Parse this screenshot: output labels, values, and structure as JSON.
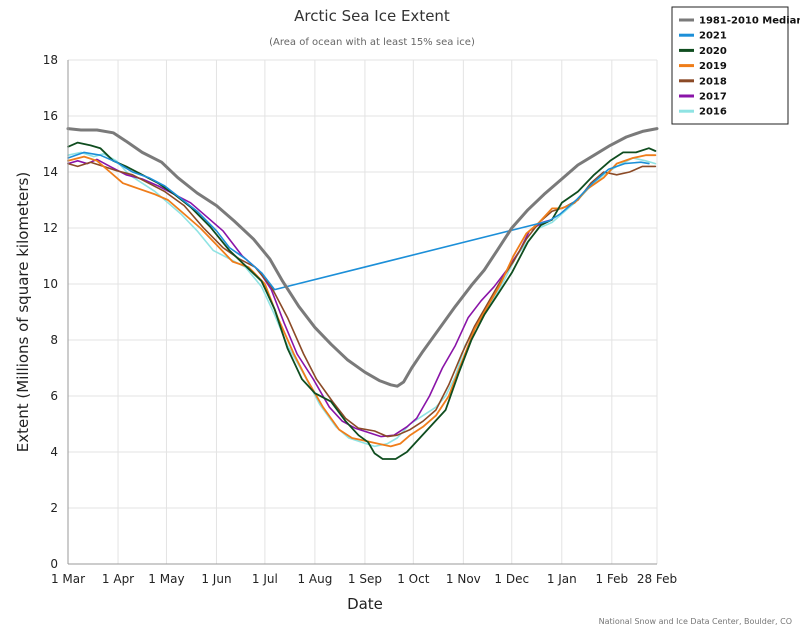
{
  "chart_data": {
    "type": "line",
    "title": "Arctic Sea Ice Extent",
    "subtitle": "(Area of ocean with at least 15% sea ice)",
    "xlabel": "Date",
    "ylabel": "Extent (Millions of square kilometers)",
    "ylim": [
      0,
      18
    ],
    "yticks": [
      0,
      2,
      4,
      6,
      8,
      10,
      12,
      14,
      16,
      18
    ],
    "xlim": [
      0,
      365
    ],
    "xticks": [
      {
        "label": "1 Mar",
        "day": 0
      },
      {
        "label": "1 Apr",
        "day": 31
      },
      {
        "label": "1 May",
        "day": 61
      },
      {
        "label": "1 Jun",
        "day": 92
      },
      {
        "label": "1 Jul",
        "day": 122
      },
      {
        "label": "1 Aug",
        "day": 153
      },
      {
        "label": "1 Sep",
        "day": 184
      },
      {
        "label": "1 Oct",
        "day": 214
      },
      {
        "label": "1 Nov",
        "day": 245
      },
      {
        "label": "1 Dec",
        "day": 275
      },
      {
        "label": "1 Jan",
        "day": 306
      },
      {
        "label": "1 Feb",
        "day": 337
      },
      {
        "label": "28 Feb",
        "day": 365
      }
    ],
    "grid": true,
    "legend_position": "top-right",
    "credits": "National Snow and Ice Data Center, Boulder, CO",
    "series": [
      {
        "name": "1981-2010 Median",
        "color": "#7a7a7a",
        "width": 3,
        "points": [
          [
            0,
            15.55
          ],
          [
            8,
            15.5
          ],
          [
            18,
            15.5
          ],
          [
            28,
            15.4
          ],
          [
            36,
            15.1
          ],
          [
            46,
            14.7
          ],
          [
            58,
            14.35
          ],
          [
            68,
            13.8
          ],
          [
            80,
            13.25
          ],
          [
            92,
            12.8
          ],
          [
            103,
            12.25
          ],
          [
            115,
            11.6
          ],
          [
            125,
            10.9
          ],
          [
            133,
            10.1
          ],
          [
            143,
            9.2
          ],
          [
            153,
            8.45
          ],
          [
            163,
            7.85
          ],
          [
            173,
            7.3
          ],
          [
            184,
            6.85
          ],
          [
            193,
            6.55
          ],
          [
            200,
            6.4
          ],
          [
            204,
            6.35
          ],
          [
            208,
            6.5
          ],
          [
            213,
            7.0
          ],
          [
            220,
            7.6
          ],
          [
            230,
            8.4
          ],
          [
            240,
            9.2
          ],
          [
            250,
            9.95
          ],
          [
            258,
            10.5
          ],
          [
            266,
            11.2
          ],
          [
            275,
            12.0
          ],
          [
            285,
            12.65
          ],
          [
            295,
            13.2
          ],
          [
            306,
            13.75
          ],
          [
            316,
            14.25
          ],
          [
            326,
            14.6
          ],
          [
            336,
            14.95
          ],
          [
            346,
            15.25
          ],
          [
            356,
            15.45
          ],
          [
            365,
            15.55
          ]
        ]
      },
      {
        "name": "2021",
        "color": "#1c8fd8",
        "width": 1.6,
        "points": [
          [
            0,
            14.5
          ],
          [
            10,
            14.7
          ],
          [
            20,
            14.6
          ],
          [
            30,
            14.35
          ],
          [
            40,
            14.0
          ],
          [
            50,
            13.8
          ],
          [
            60,
            13.5
          ],
          [
            70,
            13.05
          ],
          [
            80,
            12.6
          ],
          [
            92,
            11.9
          ],
          [
            100,
            11.3
          ],
          [
            110,
            10.9
          ],
          [
            120,
            10.4
          ],
          [
            128,
            9.8
          ],
          [
            298,
            12.25
          ],
          [
            305,
            12.5
          ],
          [
            315,
            13.0
          ],
          [
            325,
            13.6
          ],
          [
            335,
            14.1
          ],
          [
            345,
            14.3
          ],
          [
            355,
            14.35
          ],
          [
            360,
            14.3
          ]
        ]
      },
      {
        "name": "2020",
        "color": "#0f4d1f",
        "width": 1.8,
        "points": [
          [
            0,
            14.9
          ],
          [
            6,
            15.05
          ],
          [
            14,
            14.95
          ],
          [
            20,
            14.85
          ],
          [
            28,
            14.4
          ],
          [
            36,
            14.2
          ],
          [
            46,
            13.9
          ],
          [
            56,
            13.6
          ],
          [
            66,
            13.2
          ],
          [
            76,
            12.75
          ],
          [
            88,
            12.05
          ],
          [
            100,
            11.2
          ],
          [
            110,
            10.65
          ],
          [
            120,
            10.1
          ],
          [
            128,
            9.1
          ],
          [
            136,
            7.7
          ],
          [
            145,
            6.6
          ],
          [
            153,
            6.1
          ],
          [
            163,
            5.8
          ],
          [
            172,
            5.1
          ],
          [
            180,
            4.6
          ],
          [
            186,
            4.35
          ],
          [
            190,
            3.95
          ],
          [
            195,
            3.75
          ],
          [
            203,
            3.75
          ],
          [
            210,
            4.0
          ],
          [
            218,
            4.5
          ],
          [
            226,
            5.0
          ],
          [
            234,
            5.5
          ],
          [
            242,
            6.8
          ],
          [
            250,
            8.0
          ],
          [
            258,
            8.9
          ],
          [
            266,
            9.6
          ],
          [
            275,
            10.4
          ],
          [
            285,
            11.5
          ],
          [
            293,
            12.1
          ],
          [
            300,
            12.3
          ],
          [
            306,
            12.9
          ],
          [
            316,
            13.3
          ],
          [
            326,
            13.9
          ],
          [
            336,
            14.4
          ],
          [
            344,
            14.7
          ],
          [
            352,
            14.7
          ],
          [
            360,
            14.85
          ],
          [
            364,
            14.75
          ]
        ]
      },
      {
        "name": "2019",
        "color": "#ef7d1a",
        "width": 1.8,
        "points": [
          [
            0,
            14.4
          ],
          [
            10,
            14.55
          ],
          [
            18,
            14.4
          ],
          [
            26,
            14.0
          ],
          [
            34,
            13.6
          ],
          [
            44,
            13.4
          ],
          [
            54,
            13.2
          ],
          [
            62,
            13.0
          ],
          [
            72,
            12.5
          ],
          [
            82,
            12.0
          ],
          [
            92,
            11.4
          ],
          [
            102,
            10.8
          ],
          [
            112,
            10.6
          ],
          [
            122,
            10.0
          ],
          [
            130,
            8.8
          ],
          [
            140,
            7.5
          ],
          [
            148,
            6.6
          ],
          [
            158,
            5.6
          ],
          [
            168,
            4.8
          ],
          [
            176,
            4.5
          ],
          [
            184,
            4.4
          ],
          [
            192,
            4.3
          ],
          [
            200,
            4.2
          ],
          [
            206,
            4.3
          ],
          [
            212,
            4.6
          ],
          [
            220,
            4.9
          ],
          [
            228,
            5.3
          ],
          [
            236,
            6.0
          ],
          [
            244,
            7.2
          ],
          [
            252,
            8.4
          ],
          [
            260,
            9.2
          ],
          [
            268,
            10.0
          ],
          [
            276,
            11.0
          ],
          [
            284,
            11.8
          ],
          [
            292,
            12.2
          ],
          [
            300,
            12.7
          ],
          [
            306,
            12.7
          ],
          [
            314,
            12.9
          ],
          [
            322,
            13.4
          ],
          [
            332,
            13.8
          ],
          [
            340,
            14.3
          ],
          [
            350,
            14.5
          ],
          [
            358,
            14.6
          ],
          [
            364,
            14.6
          ]
        ]
      },
      {
        "name": "2018",
        "color": "#8b4a26",
        "width": 1.6,
        "points": [
          [
            0,
            14.3
          ],
          [
            6,
            14.2
          ],
          [
            14,
            14.35
          ],
          [
            22,
            14.2
          ],
          [
            30,
            14.05
          ],
          [
            40,
            13.9
          ],
          [
            50,
            13.6
          ],
          [
            60,
            13.3
          ],
          [
            72,
            12.8
          ],
          [
            84,
            12.0
          ],
          [
            96,
            11.3
          ],
          [
            106,
            10.9
          ],
          [
            116,
            10.6
          ],
          [
            126,
            9.9
          ],
          [
            136,
            8.8
          ],
          [
            146,
            7.5
          ],
          [
            154,
            6.6
          ],
          [
            164,
            5.8
          ],
          [
            172,
            5.2
          ],
          [
            180,
            4.85
          ],
          [
            190,
            4.75
          ],
          [
            198,
            4.55
          ],
          [
            204,
            4.6
          ],
          [
            212,
            4.8
          ],
          [
            220,
            5.1
          ],
          [
            228,
            5.5
          ],
          [
            236,
            6.4
          ],
          [
            244,
            7.5
          ],
          [
            252,
            8.5
          ],
          [
            260,
            9.3
          ],
          [
            268,
            10.1
          ],
          [
            276,
            10.8
          ],
          [
            284,
            11.6
          ],
          [
            292,
            12.2
          ],
          [
            300,
            12.6
          ],
          [
            308,
            12.75
          ],
          [
            316,
            13.0
          ],
          [
            324,
            13.6
          ],
          [
            332,
            14.0
          ],
          [
            340,
            13.9
          ],
          [
            348,
            14.0
          ],
          [
            356,
            14.2
          ],
          [
            364,
            14.2
          ]
        ]
      },
      {
        "name": "2017",
        "color": "#8a14a8",
        "width": 1.6,
        "points": [
          [
            0,
            14.3
          ],
          [
            6,
            14.4
          ],
          [
            12,
            14.3
          ],
          [
            18,
            14.45
          ],
          [
            26,
            14.2
          ],
          [
            36,
            13.9
          ],
          [
            46,
            13.75
          ],
          [
            56,
            13.5
          ],
          [
            66,
            13.2
          ],
          [
            76,
            12.9
          ],
          [
            86,
            12.4
          ],
          [
            96,
            11.9
          ],
          [
            108,
            11.0
          ],
          [
            118,
            10.5
          ],
          [
            126,
            9.8
          ],
          [
            134,
            8.6
          ],
          [
            142,
            7.5
          ],
          [
            152,
            6.6
          ],
          [
            162,
            5.6
          ],
          [
            170,
            5.1
          ],
          [
            178,
            4.85
          ],
          [
            186,
            4.7
          ],
          [
            194,
            4.55
          ],
          [
            202,
            4.6
          ],
          [
            210,
            4.9
          ],
          [
            216,
            5.2
          ],
          [
            224,
            6.0
          ],
          [
            232,
            7.0
          ],
          [
            240,
            7.8
          ],
          [
            248,
            8.8
          ],
          [
            256,
            9.4
          ],
          [
            264,
            9.9
          ],
          [
            272,
            10.5
          ],
          [
            280,
            11.2
          ],
          [
            286,
            11.9
          ],
          [
            294,
            12.2
          ],
          [
            300,
            12.3
          ]
        ]
      },
      {
        "name": "2016",
        "color": "#8fe3e3",
        "width": 1.6,
        "points": [
          [
            0,
            14.6
          ],
          [
            8,
            14.7
          ],
          [
            16,
            14.55
          ],
          [
            22,
            14.65
          ],
          [
            30,
            14.4
          ],
          [
            38,
            13.9
          ],
          [
            46,
            13.6
          ],
          [
            54,
            13.3
          ],
          [
            62,
            12.9
          ],
          [
            70,
            12.5
          ],
          [
            80,
            11.9
          ],
          [
            90,
            11.2
          ],
          [
            100,
            10.9
          ],
          [
            110,
            10.6
          ],
          [
            120,
            9.9
          ],
          [
            128,
            8.9
          ],
          [
            136,
            7.8
          ],
          [
            146,
            6.8
          ],
          [
            156,
            5.7
          ],
          [
            166,
            4.9
          ],
          [
            174,
            4.5
          ],
          [
            182,
            4.35
          ],
          [
            190,
            4.2
          ],
          [
            198,
            4.3
          ],
          [
            204,
            4.5
          ],
          [
            212,
            5.0
          ],
          [
            220,
            5.3
          ],
          [
            228,
            5.6
          ],
          [
            234,
            6.0
          ],
          [
            240,
            6.7
          ],
          [
            246,
            7.8
          ],
          [
            254,
            8.6
          ],
          [
            262,
            9.3
          ],
          [
            270,
            10.1
          ],
          [
            278,
            11.0
          ],
          [
            286,
            11.6
          ],
          [
            292,
            12.0
          ],
          [
            300,
            12.2
          ],
          [
            308,
            12.6
          ],
          [
            316,
            13.0
          ],
          [
            324,
            13.5
          ],
          [
            332,
            13.9
          ],
          [
            340,
            14.2
          ],
          [
            350,
            14.5
          ],
          [
            358,
            14.4
          ],
          [
            364,
            14.3
          ]
        ]
      }
    ]
  }
}
